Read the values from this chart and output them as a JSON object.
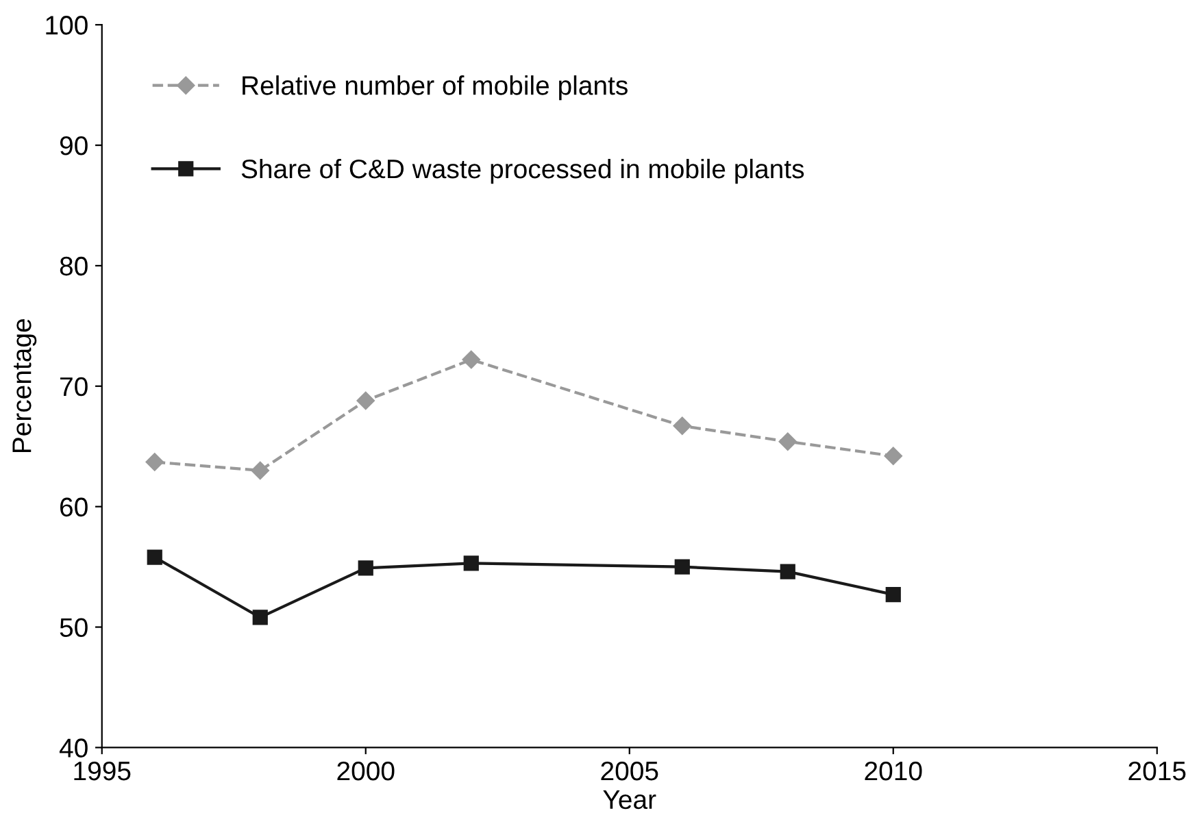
{
  "chart_data": {
    "type": "line",
    "xlabel": "Year",
    "ylabel": "Percentage",
    "x": [
      1996,
      1998,
      2000,
      2002,
      2006,
      2008,
      2010
    ],
    "series": [
      {
        "name": "Relative number of mobile plants",
        "color": "#999999",
        "values": [
          63.7,
          63.0,
          68.8,
          72.2,
          66.7,
          65.4,
          64.2
        ],
        "marker": "diamond",
        "line_style": "dashed"
      },
      {
        "name": "Share of C&D waste processed in mobile plants",
        "color": "#1a1a1a",
        "values": [
          55.8,
          50.8,
          54.9,
          55.3,
          55.0,
          54.6,
          52.7
        ],
        "marker": "square",
        "line_style": "solid"
      }
    ],
    "xlim": [
      1995,
      2015
    ],
    "xticks": [
      1995,
      2000,
      2005,
      2010,
      2015
    ],
    "ylim": [
      40,
      100
    ],
    "yticks": [
      40,
      50,
      60,
      70,
      80,
      90,
      100
    ],
    "grid": false,
    "legend": "top left"
  }
}
